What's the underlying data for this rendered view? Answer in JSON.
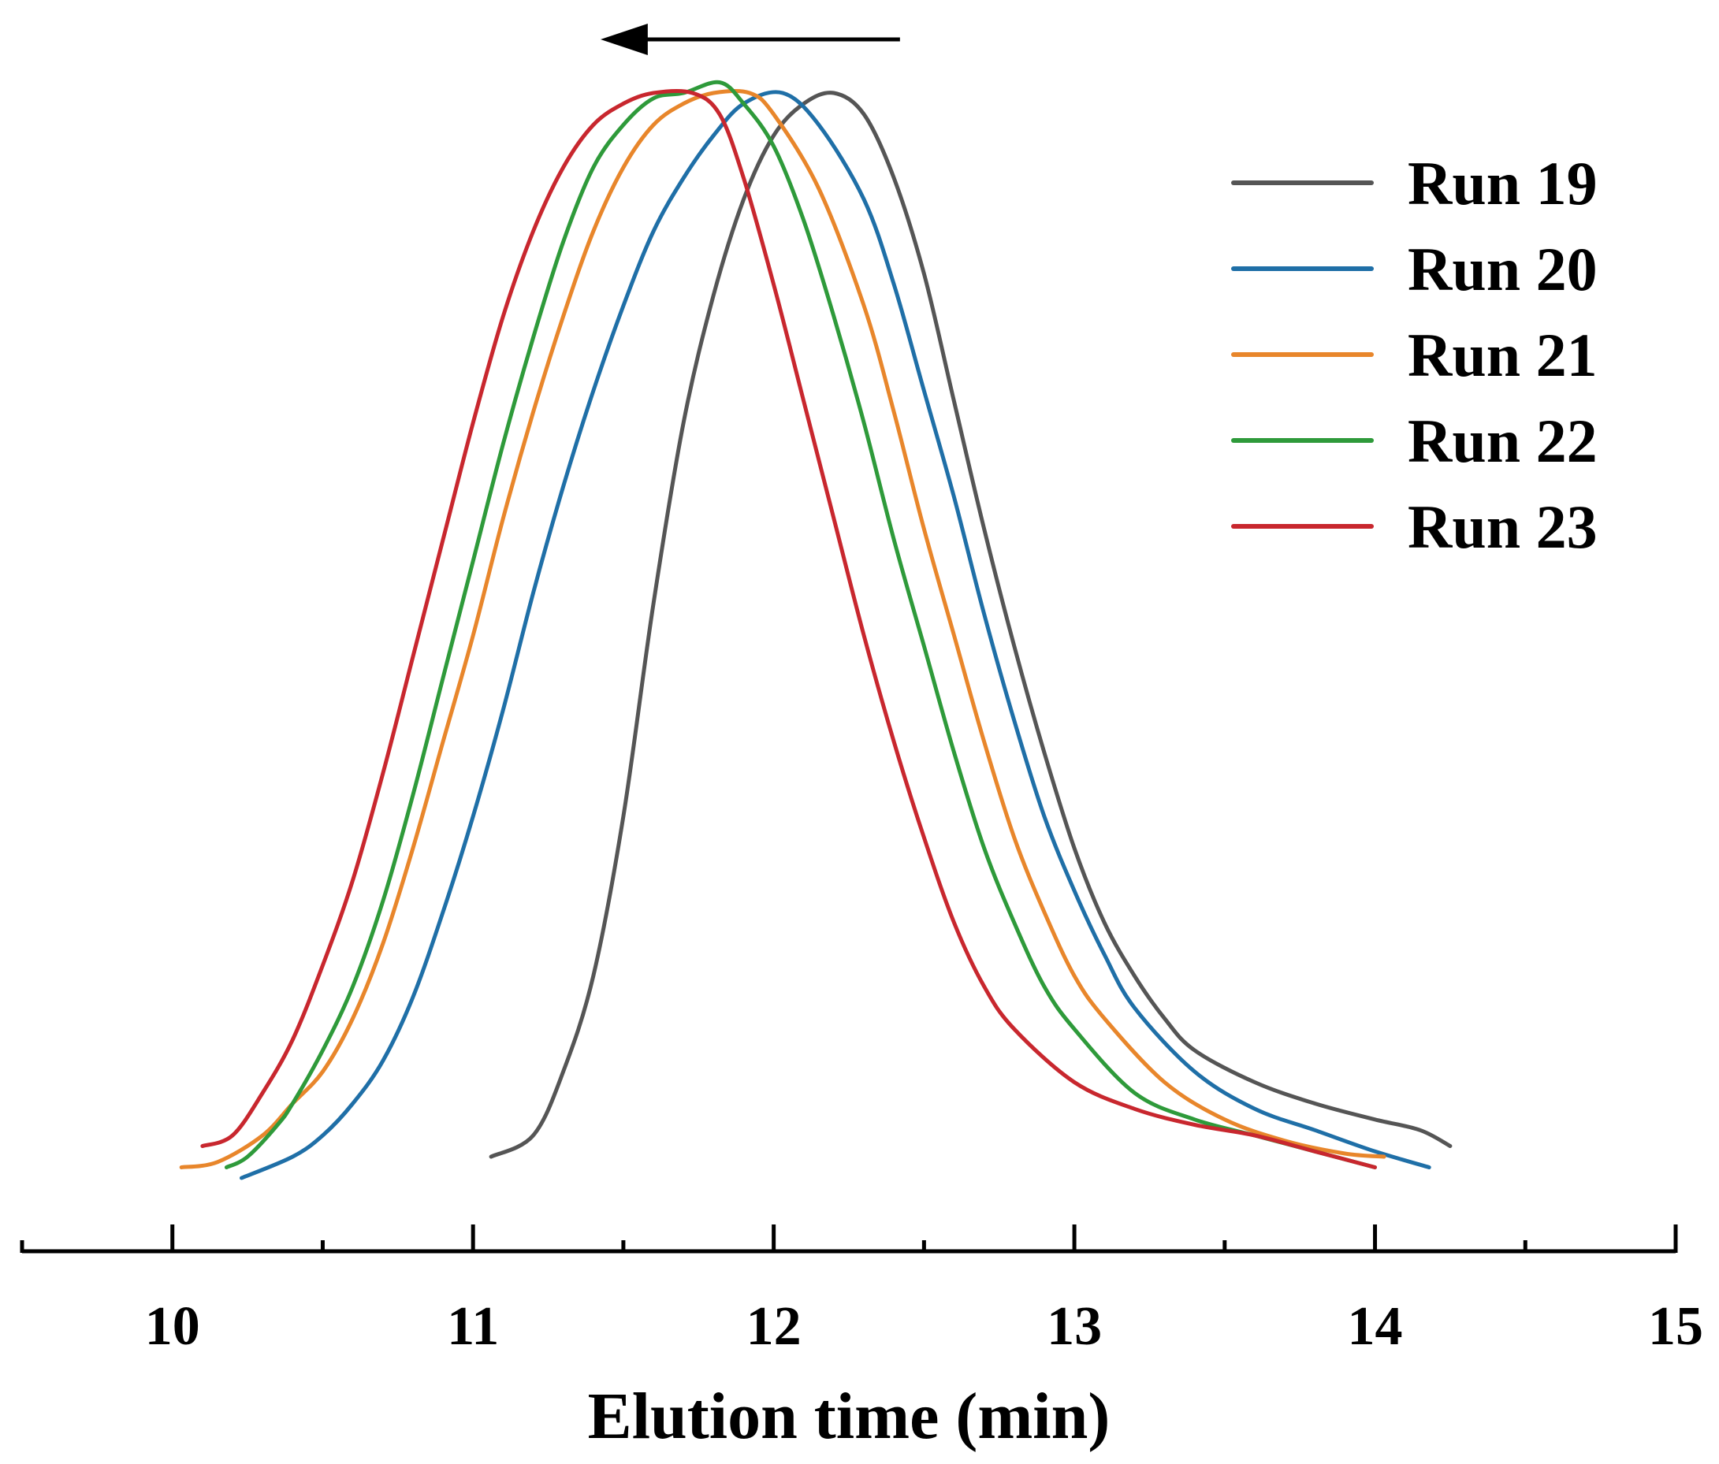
{
  "chart_data": {
    "type": "line",
    "title": "",
    "xlabel": "Elution time (min)",
    "ylabel": "",
    "xlim": [
      9.5,
      15
    ],
    "ylim": [
      0,
      1
    ],
    "x_ticks_major": [
      10,
      11,
      12,
      13,
      14,
      15
    ],
    "x_ticks_minor": [
      9.5,
      10.5,
      11.5,
      12.5,
      13.5,
      14.5
    ],
    "y_axis_visible": false,
    "grid": false,
    "legend_position": "top-right",
    "annotation": {
      "type": "arrow",
      "direction": "left",
      "from_x": 12.42,
      "to_x": 11.45
    },
    "series": [
      {
        "name": "Run 19",
        "color": "#555555",
        "points": [
          [
            11.06,
            0.0
          ],
          [
            11.2,
            0.02
          ],
          [
            11.3,
            0.08
          ],
          [
            11.4,
            0.17
          ],
          [
            11.5,
            0.32
          ],
          [
            11.6,
            0.52
          ],
          [
            11.7,
            0.69
          ],
          [
            11.8,
            0.81
          ],
          [
            11.9,
            0.9
          ],
          [
            12.0,
            0.96
          ],
          [
            12.1,
            0.99
          ],
          [
            12.2,
            1.0
          ],
          [
            12.3,
            0.98
          ],
          [
            12.4,
            0.92
          ],
          [
            12.5,
            0.83
          ],
          [
            12.6,
            0.71
          ],
          [
            12.7,
            0.59
          ],
          [
            12.8,
            0.48
          ],
          [
            12.9,
            0.38
          ],
          [
            13.0,
            0.29
          ],
          [
            13.1,
            0.22
          ],
          [
            13.2,
            0.17
          ],
          [
            13.3,
            0.13
          ],
          [
            13.4,
            0.1
          ],
          [
            13.6,
            0.07
          ],
          [
            13.8,
            0.05
          ],
          [
            14.0,
            0.035
          ],
          [
            14.15,
            0.025
          ],
          [
            14.25,
            0.01
          ]
        ]
      },
      {
        "name": "Run 20",
        "color": "#1f6fa7",
        "points": [
          [
            10.23,
            -0.02
          ],
          [
            10.4,
            0.0
          ],
          [
            10.5,
            0.02
          ],
          [
            10.6,
            0.05
          ],
          [
            10.7,
            0.09
          ],
          [
            10.8,
            0.15
          ],
          [
            10.9,
            0.23
          ],
          [
            11.0,
            0.32
          ],
          [
            11.1,
            0.42
          ],
          [
            11.2,
            0.53
          ],
          [
            11.3,
            0.63
          ],
          [
            11.4,
            0.72
          ],
          [
            11.5,
            0.8
          ],
          [
            11.6,
            0.87
          ],
          [
            11.7,
            0.92
          ],
          [
            11.8,
            0.96
          ],
          [
            11.9,
            0.99
          ],
          [
            12.03,
            1.0
          ],
          [
            12.15,
            0.97
          ],
          [
            12.3,
            0.9
          ],
          [
            12.4,
            0.82
          ],
          [
            12.5,
            0.72
          ],
          [
            12.6,
            0.62
          ],
          [
            12.7,
            0.51
          ],
          [
            12.8,
            0.41
          ],
          [
            12.9,
            0.32
          ],
          [
            13.0,
            0.25
          ],
          [
            13.1,
            0.19
          ],
          [
            13.2,
            0.14
          ],
          [
            13.4,
            0.08
          ],
          [
            13.6,
            0.045
          ],
          [
            13.8,
            0.025
          ],
          [
            14.0,
            0.005
          ],
          [
            14.18,
            -0.01
          ]
        ]
      },
      {
        "name": "Run 21",
        "color": "#e8862b",
        "points": [
          [
            10.03,
            -0.01
          ],
          [
            10.15,
            -0.005
          ],
          [
            10.3,
            0.02
          ],
          [
            10.4,
            0.05
          ],
          [
            10.5,
            0.08
          ],
          [
            10.6,
            0.13
          ],
          [
            10.7,
            0.2
          ],
          [
            10.8,
            0.29
          ],
          [
            10.9,
            0.39
          ],
          [
            11.0,
            0.49
          ],
          [
            11.1,
            0.6
          ],
          [
            11.2,
            0.7
          ],
          [
            11.3,
            0.79
          ],
          [
            11.4,
            0.87
          ],
          [
            11.5,
            0.93
          ],
          [
            11.6,
            0.97
          ],
          [
            11.7,
            0.99
          ],
          [
            11.8,
            1.0
          ],
          [
            11.92,
            1.0
          ],
          [
            12.0,
            0.98
          ],
          [
            12.15,
            0.91
          ],
          [
            12.3,
            0.8
          ],
          [
            12.4,
            0.7
          ],
          [
            12.5,
            0.59
          ],
          [
            12.6,
            0.49
          ],
          [
            12.7,
            0.39
          ],
          [
            12.8,
            0.3
          ],
          [
            12.9,
            0.23
          ],
          [
            13.0,
            0.17
          ],
          [
            13.1,
            0.13
          ],
          [
            13.3,
            0.07
          ],
          [
            13.5,
            0.035
          ],
          [
            13.7,
            0.015
          ],
          [
            13.9,
            0.003
          ],
          [
            14.03,
            0.0
          ]
        ]
      },
      {
        "name": "Run 22",
        "color": "#2e9a3a",
        "points": [
          [
            10.18,
            -0.01
          ],
          [
            10.25,
            0.0
          ],
          [
            10.35,
            0.03
          ],
          [
            10.4,
            0.05
          ],
          [
            10.5,
            0.1
          ],
          [
            10.6,
            0.16
          ],
          [
            10.7,
            0.24
          ],
          [
            10.8,
            0.34
          ],
          [
            10.9,
            0.45
          ],
          [
            11.0,
            0.56
          ],
          [
            11.1,
            0.67
          ],
          [
            11.2,
            0.77
          ],
          [
            11.3,
            0.86
          ],
          [
            11.4,
            0.93
          ],
          [
            11.5,
            0.97
          ],
          [
            11.6,
            0.995
          ],
          [
            11.7,
            1.0
          ],
          [
            11.82,
            1.01
          ],
          [
            11.9,
            0.99
          ],
          [
            12.0,
            0.95
          ],
          [
            12.1,
            0.88
          ],
          [
            12.2,
            0.79
          ],
          [
            12.3,
            0.69
          ],
          [
            12.4,
            0.58
          ],
          [
            12.5,
            0.48
          ],
          [
            12.6,
            0.38
          ],
          [
            12.7,
            0.29
          ],
          [
            12.8,
            0.22
          ],
          [
            12.9,
            0.16
          ],
          [
            13.0,
            0.12
          ],
          [
            13.2,
            0.06
          ],
          [
            13.4,
            0.035
          ],
          [
            13.6,
            0.02
          ],
          [
            13.8,
            0.005
          ],
          [
            14.0,
            -0.01
          ]
        ]
      },
      {
        "name": "Run 23",
        "color": "#c8272e",
        "points": [
          [
            10.1,
            0.01
          ],
          [
            10.2,
            0.02
          ],
          [
            10.3,
            0.06
          ],
          [
            10.4,
            0.11
          ],
          [
            10.5,
            0.18
          ],
          [
            10.6,
            0.26
          ],
          [
            10.7,
            0.36
          ],
          [
            10.8,
            0.47
          ],
          [
            10.9,
            0.58
          ],
          [
            11.0,
            0.69
          ],
          [
            11.1,
            0.79
          ],
          [
            11.2,
            0.87
          ],
          [
            11.3,
            0.93
          ],
          [
            11.4,
            0.97
          ],
          [
            11.5,
            0.99
          ],
          [
            11.6,
            1.0
          ],
          [
            11.73,
            1.0
          ],
          [
            11.82,
            0.98
          ],
          [
            11.9,
            0.92
          ],
          [
            12.0,
            0.82
          ],
          [
            12.1,
            0.71
          ],
          [
            12.2,
            0.6
          ],
          [
            12.3,
            0.49
          ],
          [
            12.4,
            0.39
          ],
          [
            12.5,
            0.3
          ],
          [
            12.6,
            0.22
          ],
          [
            12.7,
            0.16
          ],
          [
            12.8,
            0.12
          ],
          [
            13.0,
            0.07
          ],
          [
            13.2,
            0.045
          ],
          [
            13.4,
            0.03
          ],
          [
            13.6,
            0.02
          ],
          [
            13.8,
            0.005
          ],
          [
            14.0,
            -0.01
          ]
        ]
      }
    ]
  }
}
